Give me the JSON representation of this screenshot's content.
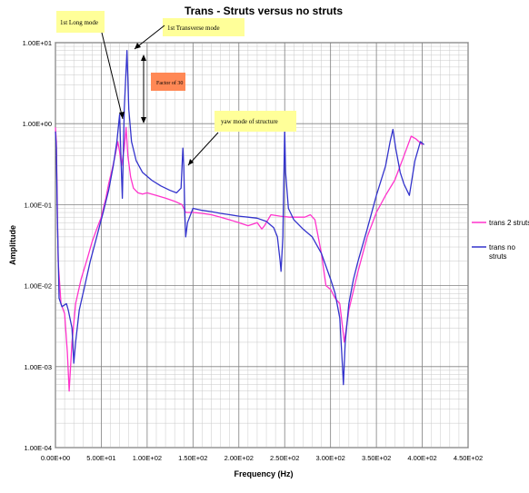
{
  "chart_data": {
    "type": "line",
    "title": "Trans - Struts versus no struts",
    "xlabel": "Frequency (Hz)",
    "ylabel": "Amplitude",
    "xlim": [
      0,
      450
    ],
    "ylim": [
      0.0001,
      10
    ],
    "yscale": "log",
    "grid": true,
    "legend_position": "right",
    "x_ticks": [
      {
        "value": 0,
        "label": "0.00E+00"
      },
      {
        "value": 50,
        "label": "5.00E+01"
      },
      {
        "value": 100,
        "label": "1.00E+02"
      },
      {
        "value": 150,
        "label": "1.50E+02"
      },
      {
        "value": 200,
        "label": "2.00E+02"
      },
      {
        "value": 250,
        "label": "2.50E+02"
      },
      {
        "value": 300,
        "label": "3.00E+02"
      },
      {
        "value": 350,
        "label": "3.50E+02"
      },
      {
        "value": 400,
        "label": "4.00E+02"
      },
      {
        "value": 450,
        "label": "4.50E+02"
      }
    ],
    "y_ticks": [
      {
        "value": 0.0001,
        "label": "1.00E-04"
      },
      {
        "value": 0.001,
        "label": "1.00E-03"
      },
      {
        "value": 0.01,
        "label": "1.00E-02"
      },
      {
        "value": 0.1,
        "label": "1.00E-01"
      },
      {
        "value": 1,
        "label": "1.00E+00"
      },
      {
        "value": 10,
        "label": "1.00E+01"
      }
    ],
    "series": [
      {
        "name": "trans 2 struts",
        "color": "#ff33cc",
        "points": [
          [
            0,
            0.9
          ],
          [
            1,
            0.6
          ],
          [
            3,
            0.02
          ],
          [
            6,
            0.006
          ],
          [
            10,
            0.0045
          ],
          [
            13,
            0.0015
          ],
          [
            15,
            0.0005
          ],
          [
            18,
            0.002
          ],
          [
            22,
            0.006
          ],
          [
            28,
            0.012
          ],
          [
            35,
            0.022
          ],
          [
            40,
            0.035
          ],
          [
            45,
            0.05
          ],
          [
            50,
            0.07
          ],
          [
            55,
            0.12
          ],
          [
            58,
            0.18
          ],
          [
            62,
            0.28
          ],
          [
            65,
            0.4
          ],
          [
            68,
            0.6
          ],
          [
            70,
            0.45
          ],
          [
            72,
            0.3
          ],
          [
            75,
            0.5
          ],
          [
            77,
            0.9
          ],
          [
            79,
            0.4
          ],
          [
            82,
            0.22
          ],
          [
            85,
            0.16
          ],
          [
            90,
            0.14
          ],
          [
            95,
            0.135
          ],
          [
            100,
            0.14
          ],
          [
            110,
            0.13
          ],
          [
            120,
            0.12
          ],
          [
            130,
            0.11
          ],
          [
            138,
            0.1
          ],
          [
            140,
            0.09
          ],
          [
            142,
            0.08
          ],
          [
            150,
            0.08
          ],
          [
            160,
            0.078
          ],
          [
            170,
            0.075
          ],
          [
            180,
            0.07
          ],
          [
            190,
            0.065
          ],
          [
            200,
            0.06
          ],
          [
            210,
            0.055
          ],
          [
            220,
            0.06
          ],
          [
            225,
            0.05
          ],
          [
            228,
            0.055
          ],
          [
            235,
            0.075
          ],
          [
            245,
            0.072
          ],
          [
            255,
            0.07
          ],
          [
            265,
            0.07
          ],
          [
            272,
            0.07
          ],
          [
            278,
            0.075
          ],
          [
            283,
            0.065
          ],
          [
            290,
            0.025
          ],
          [
            295,
            0.01
          ],
          [
            300,
            0.009
          ],
          [
            305,
            0.007
          ],
          [
            310,
            0.006
          ],
          [
            315,
            0.002
          ],
          [
            320,
            0.005
          ],
          [
            330,
            0.015
          ],
          [
            340,
            0.04
          ],
          [
            350,
            0.08
          ],
          [
            360,
            0.13
          ],
          [
            370,
            0.2
          ],
          [
            380,
            0.4
          ],
          [
            388,
            0.7
          ],
          [
            393,
            0.65
          ],
          [
            400,
            0.55
          ]
        ]
      },
      {
        "name": "trans no struts",
        "color": "#3333cc",
        "points": [
          [
            0,
            0.8
          ],
          [
            1,
            0.5
          ],
          [
            2,
            0.08
          ],
          [
            4,
            0.007
          ],
          [
            7,
            0.0055
          ],
          [
            12,
            0.006
          ],
          [
            14,
            0.005
          ],
          [
            18,
            0.003
          ],
          [
            20,
            0.0011
          ],
          [
            22,
            0.002
          ],
          [
            26,
            0.005
          ],
          [
            32,
            0.01
          ],
          [
            38,
            0.02
          ],
          [
            45,
            0.04
          ],
          [
            52,
            0.08
          ],
          [
            58,
            0.15
          ],
          [
            63,
            0.3
          ],
          [
            67,
            0.6
          ],
          [
            70,
            1.3
          ],
          [
            72,
            0.25
          ],
          [
            73,
            0.12
          ],
          [
            75,
            1.5
          ],
          [
            78,
            8
          ],
          [
            80,
            1.5
          ],
          [
            83,
            0.6
          ],
          [
            88,
            0.35
          ],
          [
            95,
            0.25
          ],
          [
            105,
            0.2
          ],
          [
            115,
            0.17
          ],
          [
            125,
            0.15
          ],
          [
            132,
            0.14
          ],
          [
            137,
            0.16
          ],
          [
            139,
            0.5
          ],
          [
            140,
            0.3
          ],
          [
            141,
            0.08
          ],
          [
            142,
            0.04
          ],
          [
            144,
            0.06
          ],
          [
            150,
            0.09
          ],
          [
            160,
            0.085
          ],
          [
            170,
            0.082
          ],
          [
            180,
            0.078
          ],
          [
            190,
            0.075
          ],
          [
            200,
            0.072
          ],
          [
            210,
            0.07
          ],
          [
            220,
            0.068
          ],
          [
            230,
            0.062
          ],
          [
            238,
            0.052
          ],
          [
            242,
            0.04
          ],
          [
            245,
            0.02
          ],
          [
            246,
            0.015
          ],
          [
            248,
            0.04
          ],
          [
            250,
            0.85
          ],
          [
            251,
            0.25
          ],
          [
            254,
            0.09
          ],
          [
            260,
            0.065
          ],
          [
            270,
            0.05
          ],
          [
            280,
            0.04
          ],
          [
            290,
            0.025
          ],
          [
            300,
            0.012
          ],
          [
            305,
            0.008
          ],
          [
            310,
            0.004
          ],
          [
            313,
            0.001
          ],
          [
            314,
            0.0006
          ],
          [
            316,
            0.002
          ],
          [
            320,
            0.006
          ],
          [
            325,
            0.012
          ],
          [
            330,
            0.02
          ],
          [
            340,
            0.05
          ],
          [
            350,
            0.13
          ],
          [
            360,
            0.3
          ],
          [
            365,
            0.6
          ],
          [
            368,
            0.85
          ],
          [
            371,
            0.5
          ],
          [
            376,
            0.25
          ],
          [
            380,
            0.18
          ],
          [
            386,
            0.13
          ],
          [
            392,
            0.35
          ],
          [
            398,
            0.6
          ],
          [
            402,
            0.55
          ]
        ]
      }
    ],
    "annotations": [
      {
        "id": "long-mode",
        "text": "1st Long mode"
      },
      {
        "id": "trans-mode",
        "text": "1st Transverse mode"
      },
      {
        "id": "factor",
        "text": "Factor of 30"
      },
      {
        "id": "yaw-mode",
        "text": "yaw mode of structure"
      }
    ]
  }
}
